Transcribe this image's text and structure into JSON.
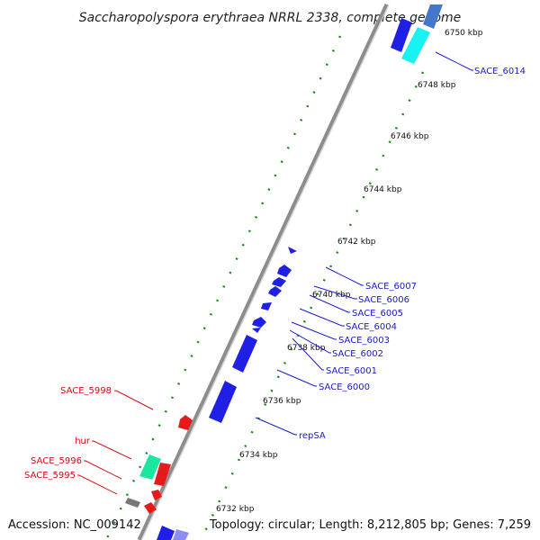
{
  "title": "Saccharopolyspora erythraea NRRL 2338, complete genome",
  "footer": {
    "accession": "Accession: NC_009142",
    "summary": "Topology: circular; Length: 8,212,805 bp; Genes: 7,259"
  },
  "ticks": [
    "6750 kbp",
    "6748 kbp",
    "6746 kbp",
    "6744 kbp",
    "6742 kbp",
    "6740 kbp",
    "6738 kbp",
    "6736 kbp",
    "6734 kbp",
    "6732 kbp"
  ],
  "labels_forward": [
    "SACE_6014",
    "SACE_6007",
    "SACE_6006",
    "SACE_6005",
    "SACE_6004",
    "SACE_6003",
    "SACE_6002",
    "SACE_6001",
    "SACE_6000",
    "repSA"
  ],
  "labels_reverse": [
    "SACE_5998",
    "hur",
    "SACE_5996",
    "SACE_5995"
  ],
  "colors": {
    "forward_label": "#1a1acc",
    "reverse_label": "#cc1111",
    "forward_gene": "#1f1fe6",
    "reverse_gene": "#e61a1a",
    "cyan_gene": "#19f2f2",
    "green_gene": "#1ae6a0",
    "gray_gene": "#777777",
    "backbone": "#8c8c8c",
    "dotted_ring": "#1a8c1a"
  }
}
